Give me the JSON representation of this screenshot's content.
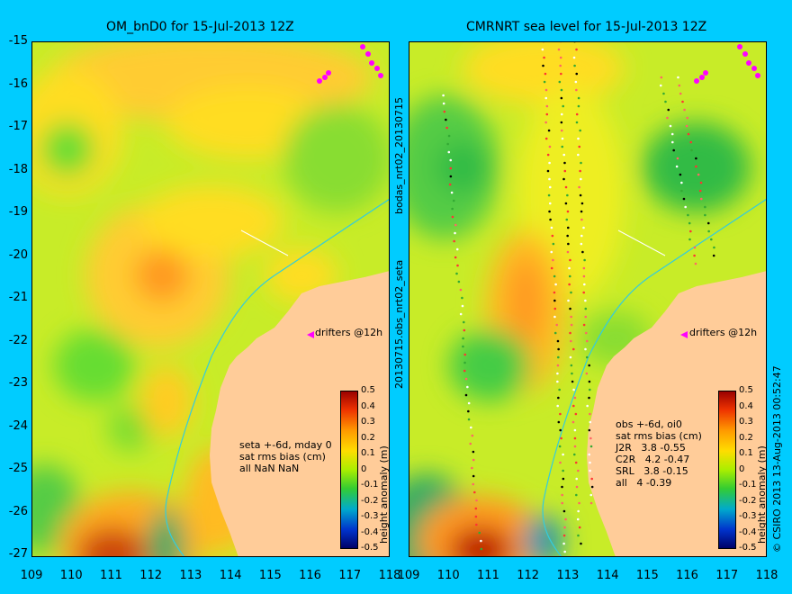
{
  "left_panel": {
    "title": "OM_bnD0 for 15-Jul-2013 12Z",
    "note_lines": [
      "seta +-6d, mday 0",
      "sat rms bias (cm)",
      "all NaN NaN"
    ],
    "drifter_label": "drifters @12h"
  },
  "right_panel": {
    "title": "CMRNRT sea level  for 15-Jul-2013 12Z",
    "note_lines": [
      "obs +-6d, oi0",
      "sat rms bias (cm)",
      "J2R   3.8 -0.55",
      "C2R   4.2 -0.47",
      "SRL   3.8 -0.15",
      "all   4 -0.39"
    ],
    "drifter_label": "drifters @12h"
  },
  "side_label_top": "bodas_nrt02_20130715",
  "side_label_bottom": "20130715.obs_nrt02_seta",
  "copyright": "© CSIRO 2013   13-Aug-2013 00:52:47",
  "colorbar": {
    "label": "height anomaly (m)",
    "ticks": [
      "0.5",
      "0.4",
      "0.3",
      "0.2",
      "0.1",
      "0",
      "-0.1",
      "-0.2",
      "-0.3",
      "-0.4",
      "-0.5"
    ]
  },
  "y_ticks": [
    "-15",
    "-16",
    "-17",
    "-18",
    "-19",
    "-20",
    "-21",
    "-22",
    "-23",
    "-24",
    "-25",
    "-26",
    "-27"
  ],
  "x_ticks": [
    "109",
    "110",
    "111",
    "112",
    "113",
    "114",
    "115",
    "116",
    "117",
    "118"
  ],
  "colors": {
    "background": "#00ccff",
    "land": "#ffcc99",
    "field_base": "#ccee22",
    "drifter": "#ff00ff",
    "isobath": "#33ccdd"
  }
}
